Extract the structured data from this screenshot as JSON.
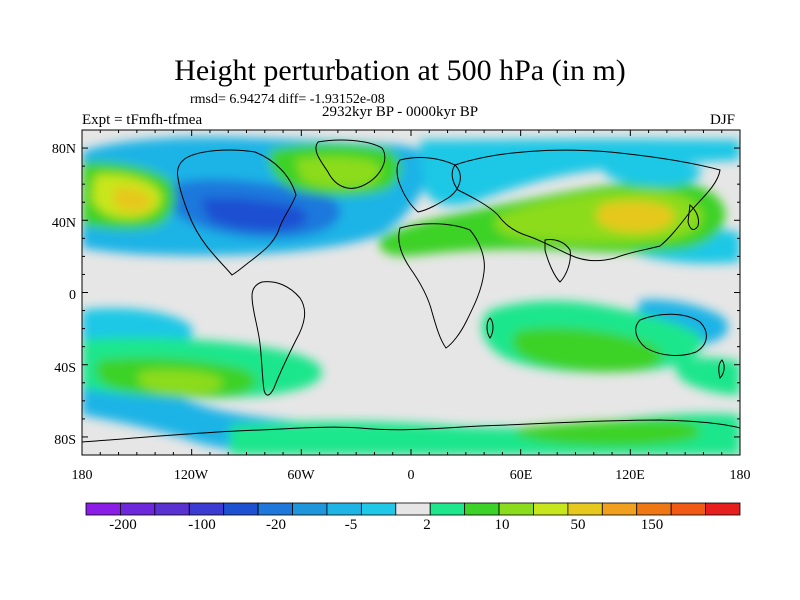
{
  "title": "Height perturbation at 500 hPa (in m)",
  "stats": "rmsd= 6.94274 diff= -1.93152e-08",
  "period": "2932kyr BP - 0000kyr BP",
  "experiment": "Expt = tFmfh-tfmea",
  "season": "DJF",
  "axes": {
    "lat_labels": [
      "80N",
      "40N",
      "0",
      "40S",
      "80S"
    ],
    "lon_labels": [
      "180",
      "120W",
      "60W",
      "0",
      "60E",
      "120E",
      "180"
    ]
  },
  "colorbar": {
    "labels": [
      "-200",
      "-100",
      "-20",
      "-5",
      "2",
      "10",
      "50",
      "150"
    ],
    "colors": [
      "#8a1ee6",
      "#6e28dc",
      "#5a32d2",
      "#3c3cd2",
      "#1e50d2",
      "#1e78dc",
      "#1e96dc",
      "#1eb4e6",
      "#1ec8e6",
      "#e6e6e6",
      "#1ee68c",
      "#3cd228",
      "#8cdc1e",
      "#c8e61e",
      "#e6c81e",
      "#f0a01e",
      "#f07814",
      "#f05a14",
      "#e61e1e"
    ]
  },
  "colors": {
    "background": "#e6e6e6",
    "coast": "#000000"
  }
}
